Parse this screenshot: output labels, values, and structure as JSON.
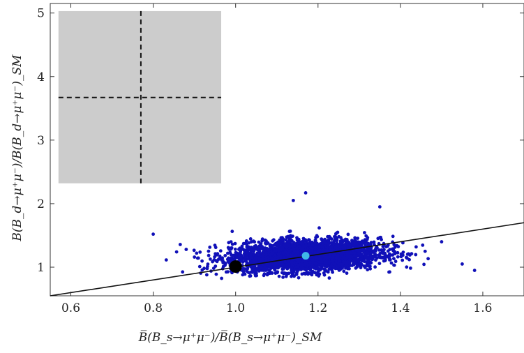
{
  "chart_data": {
    "type": "scatter",
    "title": "",
    "xlabel": "B̅(B_s→μ⁺μ⁻)/B̅(B_s→μ⁺μ⁻)_SM",
    "ylabel": "B(B_d→μ⁺μ⁻)/B(B_d→μ⁺μ⁻)_SM",
    "xlim": [
      0.55,
      1.7
    ],
    "ylim": [
      0.55,
      5.15
    ],
    "x_ticks": [
      "0.6",
      "0.8",
      "1.0",
      "1.2",
      "1.4",
      "1.6"
    ],
    "y_ticks": [
      "1",
      "2",
      "3",
      "4",
      "5"
    ],
    "x_tick_values": [
      0.6,
      0.8,
      1.0,
      1.2,
      1.4,
      1.6
    ],
    "y_tick_values": [
      1,
      2,
      3,
      4,
      5
    ],
    "colors": {
      "scatter": "#1010b8",
      "sm_point": "#000000",
      "central_point": "#3fb8e8",
      "band": "#cccccc",
      "line": "#111111"
    },
    "scatter_cloud": {
      "center_x": 1.17,
      "center_y": 1.18,
      "sd_x": 0.09,
      "sd_y": 0.12,
      "x_range": [
        0.8,
        1.58
      ],
      "y_range": [
        0.82,
        2.18
      ],
      "count": 3200
    },
    "experimental_band": {
      "x_range": [
        0.57,
        0.965
      ],
      "y_range": [
        2.32,
        5.03
      ],
      "central_x": 0.77,
      "central_y": 3.67
    },
    "sm_point": {
      "x": 1.0,
      "y": 1.01
    },
    "central_point": {
      "x": 1.17,
      "y": 1.18
    },
    "line": {
      "points": [
        [
          0.55,
          0.55
        ],
        [
          1.7,
          1.7
        ]
      ]
    }
  }
}
